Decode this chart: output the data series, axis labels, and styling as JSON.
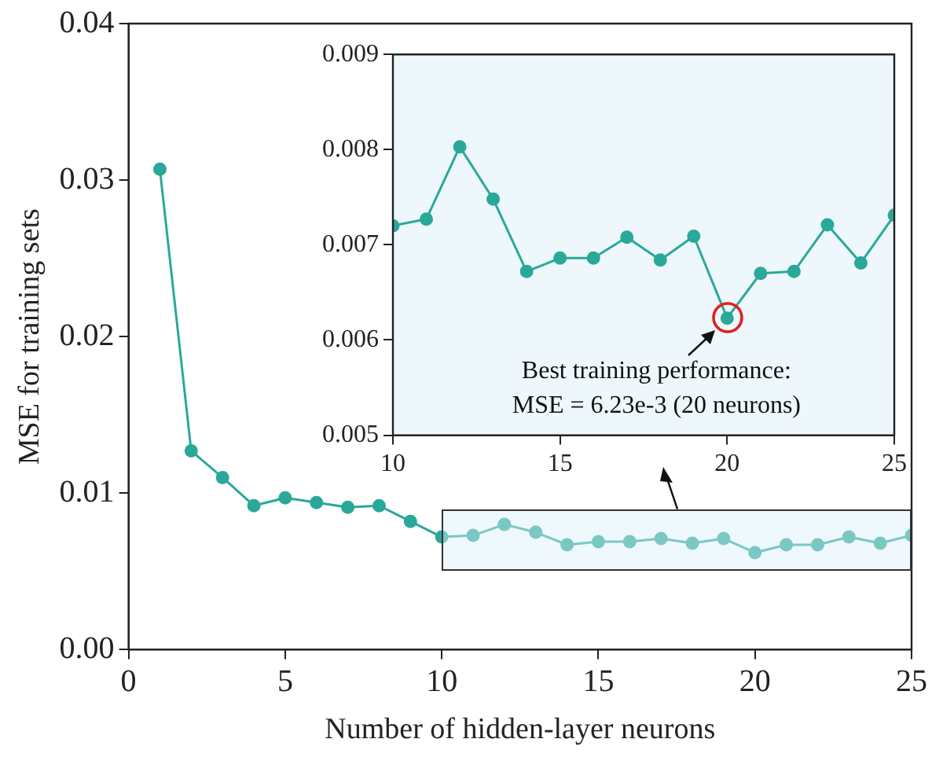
{
  "chart_data": [
    {
      "type": "line",
      "xlabel": "Number of hidden-layer neurons",
      "ylabel": "MSE for training sets",
      "marker": "circle",
      "x": [
        1,
        2,
        3,
        4,
        5,
        6,
        7,
        8,
        9,
        10,
        11,
        12,
        13,
        14,
        15,
        16,
        17,
        18,
        19,
        20,
        21,
        22,
        23,
        24,
        25
      ],
      "series": [
        {
          "color": "#2aa89a",
          "values": [
            0.0307,
            0.0127,
            0.011,
            0.0092,
            0.0097,
            0.0094,
            0.0091,
            0.0092,
            0.0082,
            0.0072,
            0.0073,
            0.008,
            0.0075,
            0.0067,
            0.0069,
            0.0069,
            0.0071,
            0.0068,
            0.0071,
            0.0062,
            0.0067,
            0.0067,
            0.0072,
            0.0068,
            0.0073
          ]
        }
      ],
      "xlim": [
        0,
        25
      ],
      "xticks": [
        0,
        5,
        10,
        15,
        20,
        25
      ],
      "ylim": [
        0,
        0.04
      ],
      "yticks": [
        {
          "value": 0,
          "label": "0.00"
        },
        {
          "value": 0.01,
          "label": "0.01"
        },
        {
          "value": 0.02,
          "label": "0.02"
        },
        {
          "value": 0.03,
          "label": "0.03"
        },
        {
          "value": 0.04,
          "label": "0.04"
        }
      ]
    },
    {
      "type": "line",
      "marker": "circle",
      "x": [
        10,
        11,
        12,
        13,
        14,
        15,
        16,
        17,
        18,
        19,
        20,
        21,
        22,
        23,
        24,
        25
      ],
      "series": [
        {
          "color": "#2aa89a",
          "values": [
            0.0072,
            0.00727,
            0.00803,
            0.00748,
            0.00672,
            0.00686,
            0.00686,
            0.00708,
            0.00684,
            0.00709,
            0.00623,
            0.0067,
            0.00672,
            0.00721,
            0.00681,
            0.00731
          ]
        }
      ],
      "xlim": [
        10,
        25
      ],
      "xticks": [
        10,
        15,
        20,
        25
      ],
      "ylim": [
        0.005,
        0.009
      ],
      "yticks": [
        0.005,
        0.006,
        0.007,
        0.008,
        0.009
      ],
      "annotations": [
        {
          "text": "Best training performance: MSE = 6.23e-3 (20 neurons)",
          "x": 20,
          "y": 0.00623
        }
      ]
    }
  ]
}
